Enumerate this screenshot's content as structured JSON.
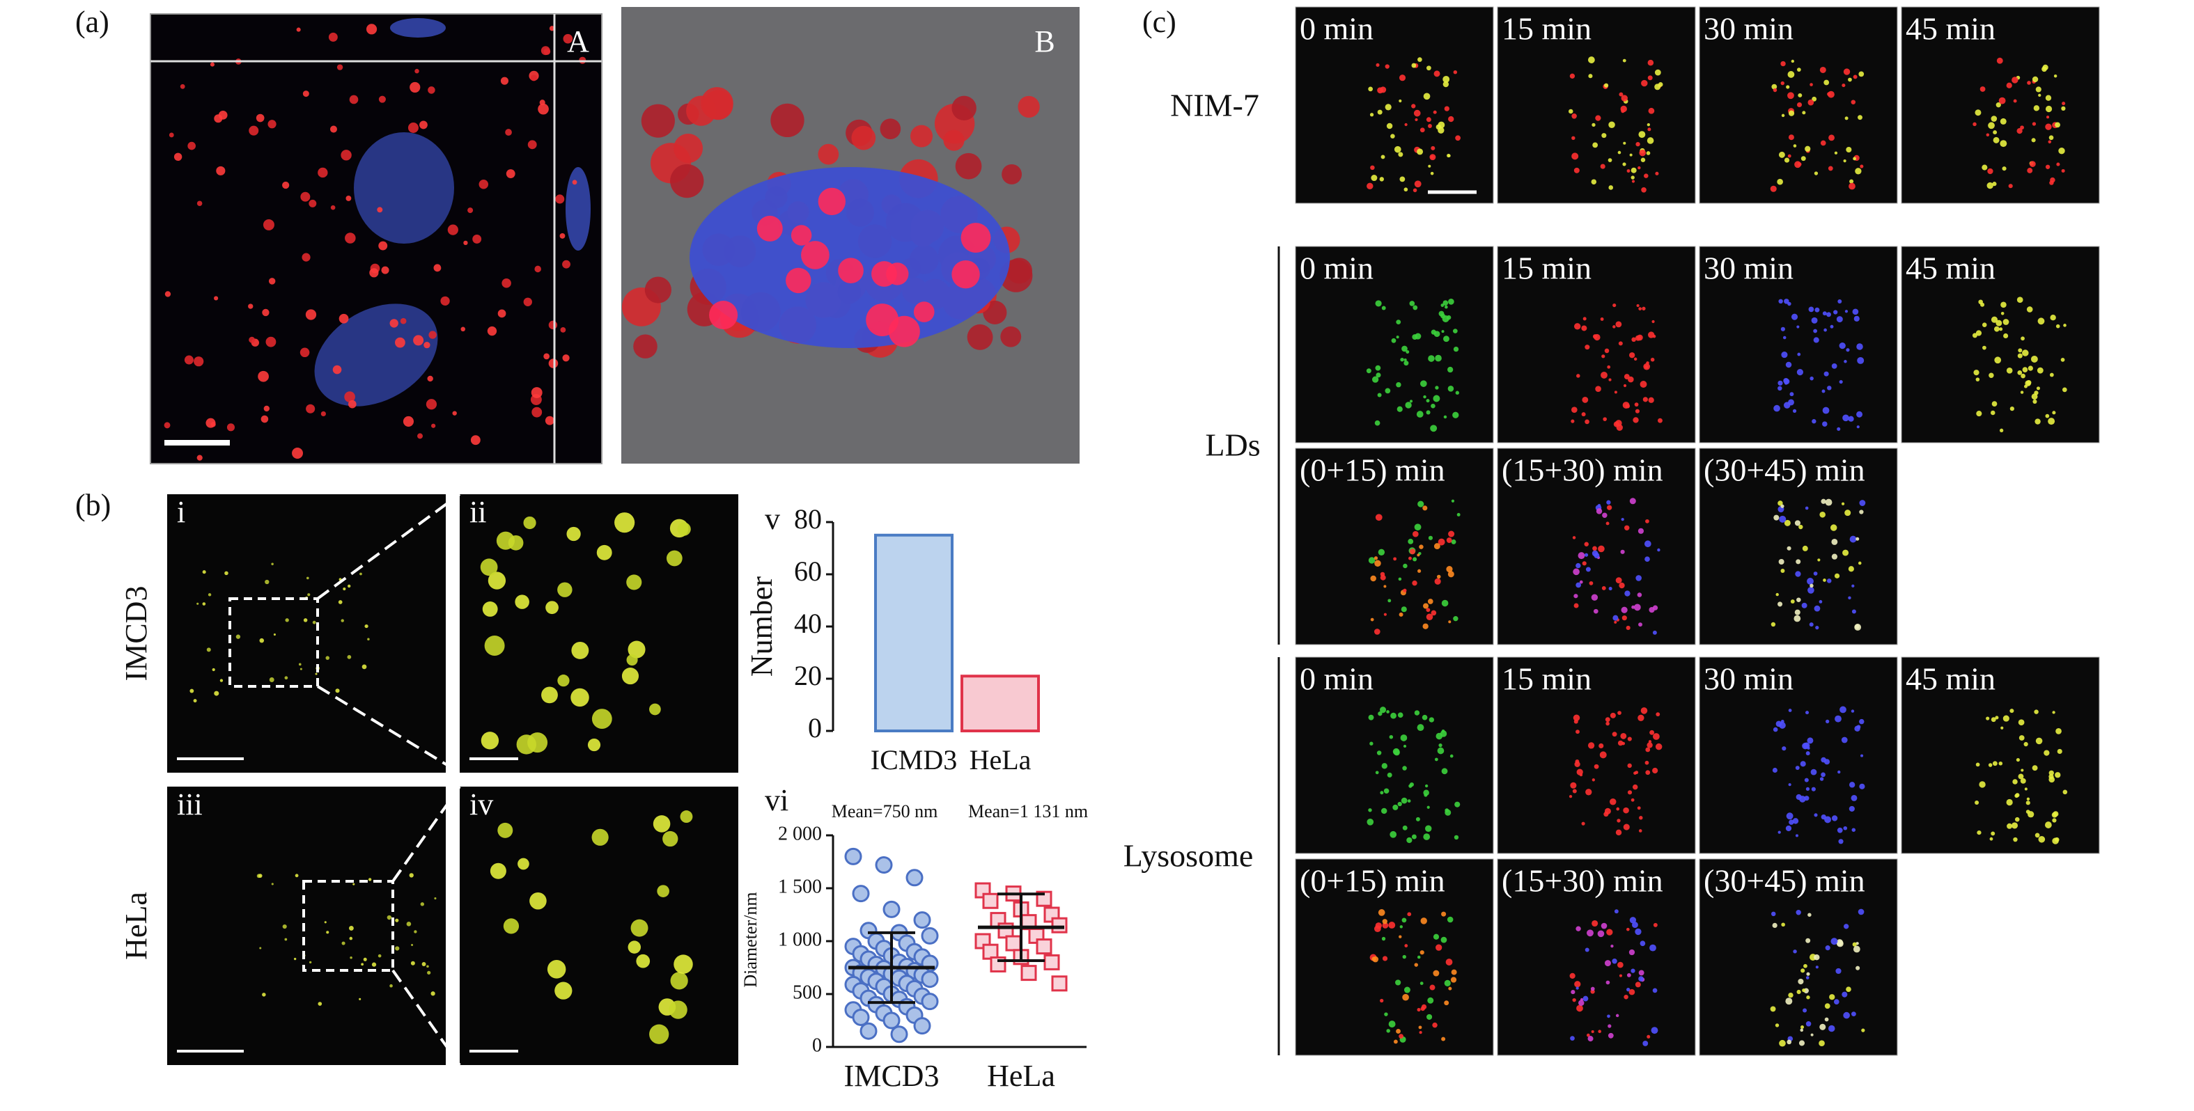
{
  "panel_a": {
    "label": "(a)",
    "image_labels": [
      "A",
      "B"
    ]
  },
  "panel_b": {
    "label": "(b)",
    "image_labels": [
      "i",
      "ii",
      "iii",
      "iv"
    ],
    "row_labels": [
      "IMCD3",
      "HeLa"
    ]
  },
  "panel_c": {
    "label": "(c)",
    "groups": [
      {
        "label": "NIM-7",
        "rows": [
          [
            "0 min",
            "15 min",
            "30 min",
            "45 min"
          ]
        ]
      },
      {
        "label": "LDs",
        "rows": [
          [
            "0 min",
            "15 min",
            "30 min",
            "45 min"
          ],
          [
            "(0+15) min",
            "(15+30) min",
            "(30+45) min"
          ]
        ]
      },
      {
        "label": "Lysosome",
        "rows": [
          [
            "0 min",
            "15 min",
            "30 min",
            "45 min"
          ],
          [
            "(0+15) min",
            "(15+30) min",
            "(30+45) min"
          ]
        ]
      }
    ]
  },
  "chart_data": [
    {
      "type": "bar",
      "panel": "v",
      "ylabel": "Number",
      "categories": [
        "ICMD3",
        "HeLa"
      ],
      "values": [
        75,
        21
      ],
      "colors": [
        "#bcd3ee",
        "#f8c9d1"
      ],
      "edge_colors": [
        "#4a7cc4",
        "#e0334a"
      ],
      "ylim": [
        0,
        80
      ],
      "yticks": [
        0,
        20,
        40,
        60,
        80
      ]
    },
    {
      "type": "strip",
      "panel": "vi",
      "ylabel": "Diameter/nm",
      "categories": [
        "IMCD3",
        "HeLa"
      ],
      "groups": [
        {
          "values": [
            1800,
            1720,
            1600,
            1450,
            1300,
            1200,
            1100,
            1080,
            1050,
            1000,
            980,
            950,
            930,
            900,
            880,
            860,
            850,
            830,
            800,
            790,
            780,
            760,
            750,
            740,
            720,
            700,
            690,
            680,
            660,
            650,
            640,
            620,
            600,
            590,
            570,
            550,
            530,
            500,
            480,
            460,
            450,
            430,
            400,
            380,
            350,
            320,
            300,
            280,
            250,
            200,
            150,
            120
          ],
          "color": "#aac1e8",
          "edge_color": "#4a6fc4",
          "marker": "circle"
        },
        {
          "values": [
            1480,
            1450,
            1400,
            1380,
            1300,
            1250,
            1200,
            1180,
            1150,
            1100,
            1050,
            1000,
            980,
            950,
            900,
            850,
            800,
            780,
            700,
            600
          ],
          "color": "#f9d3da",
          "edge_color": "#e0334a",
          "marker": "square"
        }
      ],
      "means": [
        750,
        1131
      ],
      "mean_labels": [
        "Mean=750 nm",
        "Mean=1 131 nm"
      ],
      "sds": [
        330,
        315
      ],
      "ylim": [
        0,
        2000
      ],
      "yticks": [
        0,
        {
          "value": 500,
          "label": "500"
        },
        {
          "value": 1000,
          "label": "1 000"
        },
        {
          "value": 1500,
          "label": "1 500"
        },
        {
          "value": 2000,
          "label": "2 000"
        }
      ]
    }
  ]
}
